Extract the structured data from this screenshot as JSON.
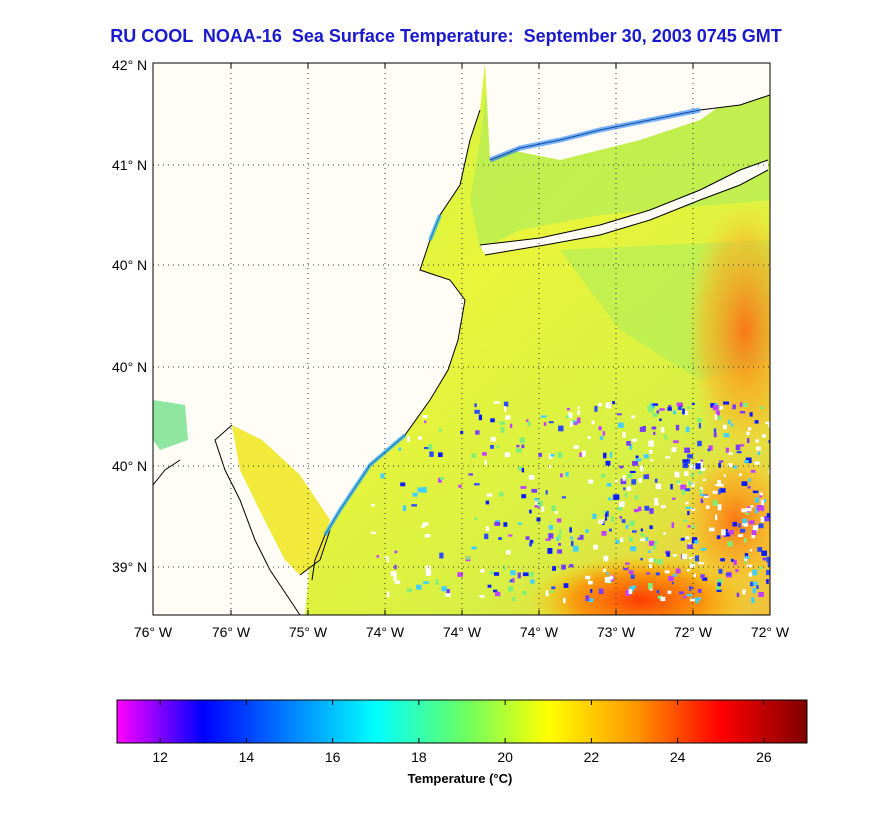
{
  "title": "RU COOL  NOAA-16  Sea Surface Temperature:  September 30, 2003 0745 GMT",
  "map": {
    "lat_labels": [
      "42° N",
      "41° N",
      "40° N",
      "40° N",
      "40° N",
      "39° N"
    ],
    "lon_labels": [
      "76° W",
      "76° W",
      "75° W",
      "74° W",
      "74° W",
      "74° W",
      "73° W",
      "72° W",
      "72° W"
    ],
    "land_color": "#fffdf5",
    "grid": true
  },
  "colorbar": {
    "title": "Temperature (°C)",
    "ticks": [
      "12",
      "14",
      "16",
      "18",
      "20",
      "22",
      "24",
      "26"
    ],
    "tick_values": [
      12,
      14,
      16,
      18,
      20,
      22,
      24,
      26
    ],
    "range": [
      11,
      27
    ],
    "stops": [
      {
        "value": 11,
        "color": "#ff00ff"
      },
      {
        "value": 13,
        "color": "#0000ff"
      },
      {
        "value": 17,
        "color": "#00ffff"
      },
      {
        "value": 19,
        "color": "#66ff66"
      },
      {
        "value": 21,
        "color": "#ffff00"
      },
      {
        "value": 23,
        "color": "#ff9900"
      },
      {
        "value": 25,
        "color": "#ff0000"
      },
      {
        "value": 27,
        "color": "#800000"
      }
    ]
  }
}
